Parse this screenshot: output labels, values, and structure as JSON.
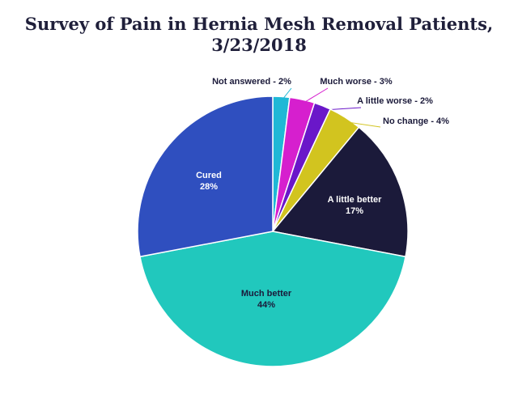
{
  "chart_data": {
    "type": "pie",
    "title": [
      "Survey of Pain in Hernia Mesh Removal Patients,",
      "3/23/2018"
    ],
    "slices": [
      {
        "label": "Not answered - 2%",
        "name": "Not answered",
        "value": 2,
        "color": "#1fb8d6",
        "label_lines": [
          "Not answered - 2%"
        ]
      },
      {
        "label": "Much worse - 3%",
        "name": "Much worse",
        "value": 3,
        "color": "#d61fce",
        "label_lines": [
          "Much worse - 3%"
        ]
      },
      {
        "label": "A little worse - 2%",
        "name": "A little worse",
        "value": 2,
        "color": "#6a17c9",
        "label_lines": [
          "A little worse - 2%"
        ]
      },
      {
        "label": "No change - 4%",
        "name": "No change",
        "value": 4,
        "color": "#d2c41f",
        "label_lines": [
          "No change - 4%"
        ]
      },
      {
        "label": "A little better 17%",
        "name": "A little better",
        "value": 17,
        "color": "#1b1a3a",
        "label_lines": [
          "A little better",
          "17%"
        ]
      },
      {
        "label": "Much better 44%",
        "name": "Much better",
        "value": 44,
        "color": "#21c8bd",
        "label_lines": [
          "Much better",
          "44%"
        ]
      },
      {
        "label": "Cured 28%",
        "name": "Cured",
        "value": 28,
        "color": "#2f4fbf",
        "label_lines": [
          "Cured",
          "28%"
        ]
      }
    ],
    "legend": "none"
  }
}
